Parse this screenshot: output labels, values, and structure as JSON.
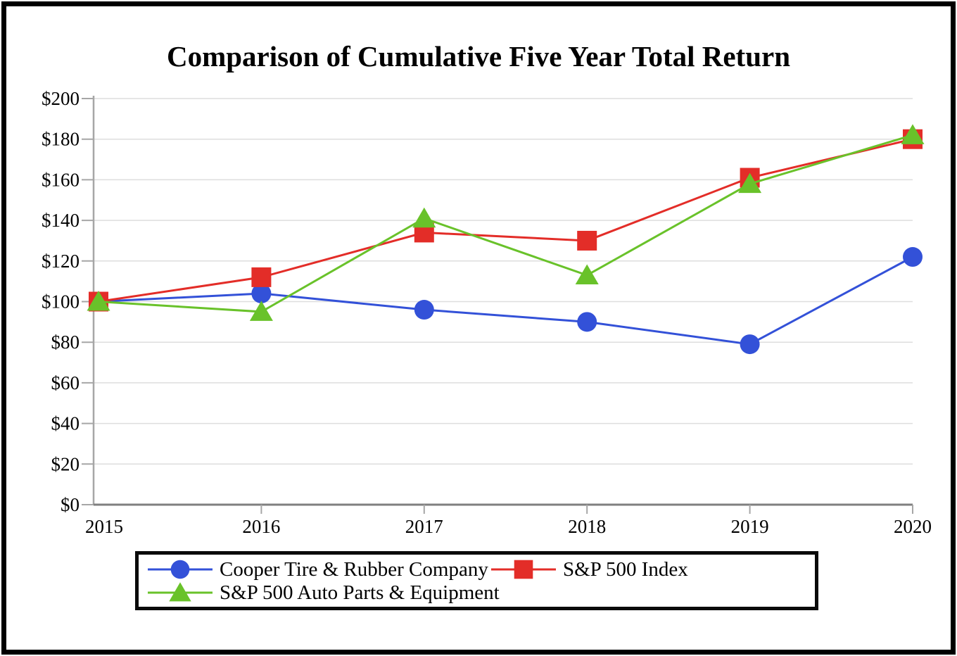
{
  "chart_data": {
    "type": "line",
    "title": "Comparison of Cumulative Five Year Total Return",
    "categories": [
      "2015",
      "2016",
      "2017",
      "2018",
      "2019",
      "2020"
    ],
    "series": [
      {
        "name": "Cooper Tire & Rubber Company",
        "marker": "circle",
        "color": "#3351d8",
        "values": [
          100,
          104,
          96,
          90,
          79,
          122
        ]
      },
      {
        "name": "S&P 500 Index",
        "marker": "square",
        "color": "#e32d28",
        "values": [
          100,
          112,
          134,
          130,
          161,
          180
        ]
      },
      {
        "name": "S&P 500 Auto Parts & Equipment",
        "marker": "triangle",
        "color": "#69c22a",
        "values": [
          100,
          95,
          141,
          113,
          158,
          182
        ]
      }
    ],
    "ylim": [
      0,
      200
    ],
    "ytick_values": [
      0,
      20,
      40,
      60,
      80,
      100,
      120,
      140,
      160,
      180,
      200
    ],
    "ytick_labels": [
      "$0",
      "$20",
      "$40",
      "$60",
      "$80",
      "$100",
      "$120",
      "$140",
      "$160",
      "$180",
      "$200"
    ],
    "grid": true,
    "legend_position": "bottom",
    "colors": {
      "gridline": "#dedede",
      "y_axis": "#a6a6a6",
      "x_axis": "#7f7f7f",
      "tick": "#a6a6a6",
      "text": "#000000",
      "frame_border": "#000000",
      "legend_border": "#0a0a0a"
    }
  }
}
